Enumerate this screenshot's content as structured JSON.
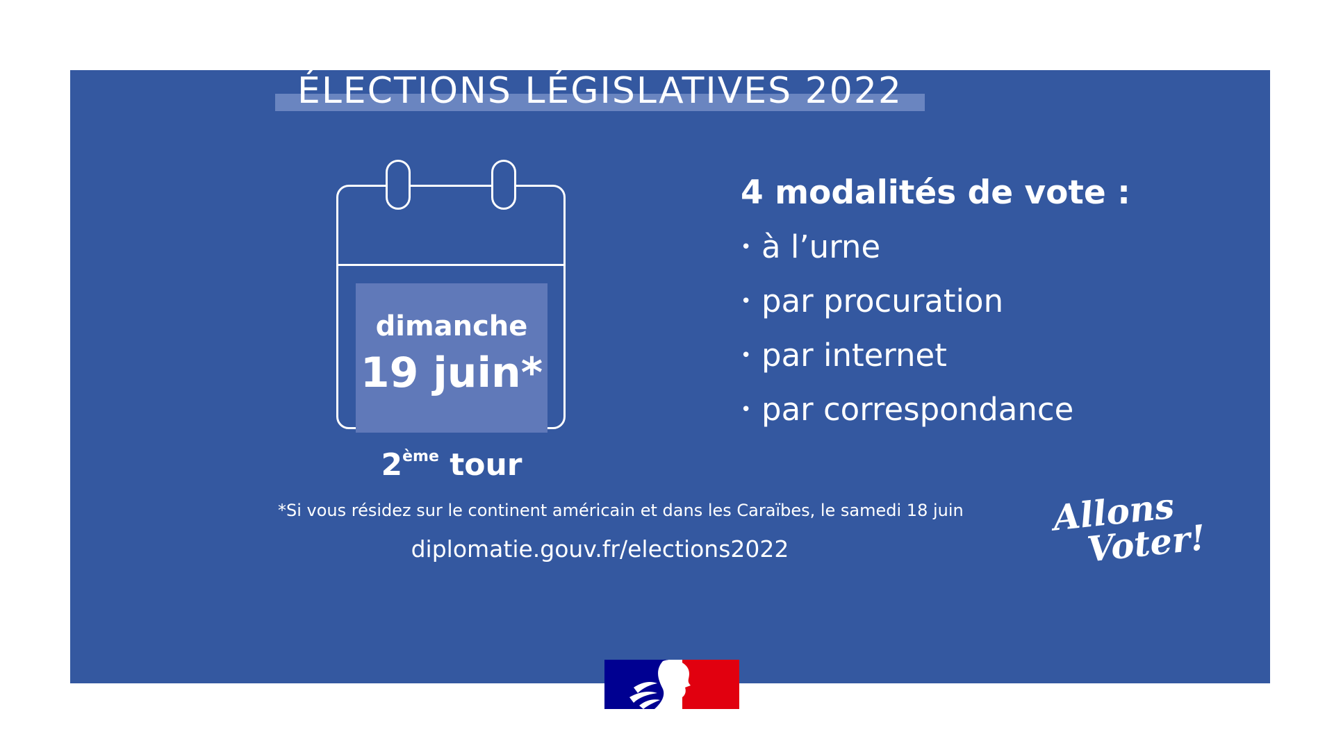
{
  "title": "ÉLECTIONS LÉGISLATIVES 2022",
  "calendar": {
    "day": "dimanche",
    "date": "19 juin*",
    "round_number": "2",
    "round_suffix": "ème",
    "round_word": "tour"
  },
  "modes": {
    "heading": "4 modalités de vote :",
    "bullet": "•",
    "items": [
      "à l’urne",
      "par procuration",
      "par internet",
      "par correspondance"
    ]
  },
  "footnote": "*Si vous résidez sur le continent américain et dans les Caraïbes, le samedi 18 juin",
  "url": "diplomatie.gouv.fr/elections2022",
  "slogan": {
    "line1": "Allons",
    "line2": "Voter!"
  },
  "colors": {
    "background": "#3458a0",
    "title_band": "#6a85c0",
    "date_box": "#6079b9",
    "text": "#ffffff",
    "flag_blue": "#000091",
    "flag_red": "#e1000f"
  }
}
